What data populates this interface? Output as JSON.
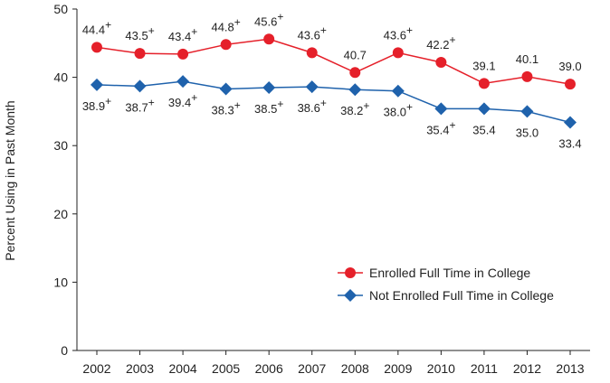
{
  "chart_data": {
    "type": "line",
    "title": "",
    "xlabel": "",
    "ylabel": "Percent Using in Past Month",
    "ylim": [
      0,
      50
    ],
    "yticks": [
      0,
      10,
      20,
      30,
      40,
      50
    ],
    "x": [
      "2002",
      "2003",
      "2004",
      "2005",
      "2006",
      "2007",
      "2008",
      "2009",
      "2010",
      "2011",
      "2012",
      "2013"
    ],
    "grid": false,
    "legend_position": "bottom-right",
    "series": [
      {
        "name": "Enrolled Full Time in College",
        "color": "#e5202a",
        "marker": "circle",
        "values": [
          44.4,
          43.5,
          43.4,
          44.8,
          45.6,
          43.6,
          40.7,
          43.6,
          42.2,
          39.1,
          40.1,
          39.0
        ],
        "labels": [
          "44.4",
          "43.5",
          "43.4",
          "44.8",
          "45.6",
          "43.6",
          "40.7",
          "43.6",
          "42.2",
          "39.1",
          "40.1",
          "39.0"
        ],
        "significant": [
          true,
          true,
          true,
          true,
          true,
          true,
          false,
          true,
          true,
          false,
          false,
          false
        ],
        "label_side": "above"
      },
      {
        "name": "Not Enrolled Full Time in College",
        "color": "#1f62ac",
        "marker": "diamond",
        "values": [
          38.9,
          38.7,
          39.4,
          38.3,
          38.5,
          38.6,
          38.2,
          38.0,
          35.4,
          35.4,
          35.0,
          33.4
        ],
        "labels": [
          "38.9",
          "38.7",
          "39.4",
          "38.3",
          "38.5",
          "38.6",
          "38.2",
          "38.0",
          "35.4",
          "35.4",
          "35.0",
          "33.4"
        ],
        "significant": [
          true,
          true,
          true,
          true,
          true,
          true,
          true,
          true,
          true,
          false,
          false,
          false
        ],
        "label_side": "below"
      }
    ],
    "significance_marker": "+"
  }
}
